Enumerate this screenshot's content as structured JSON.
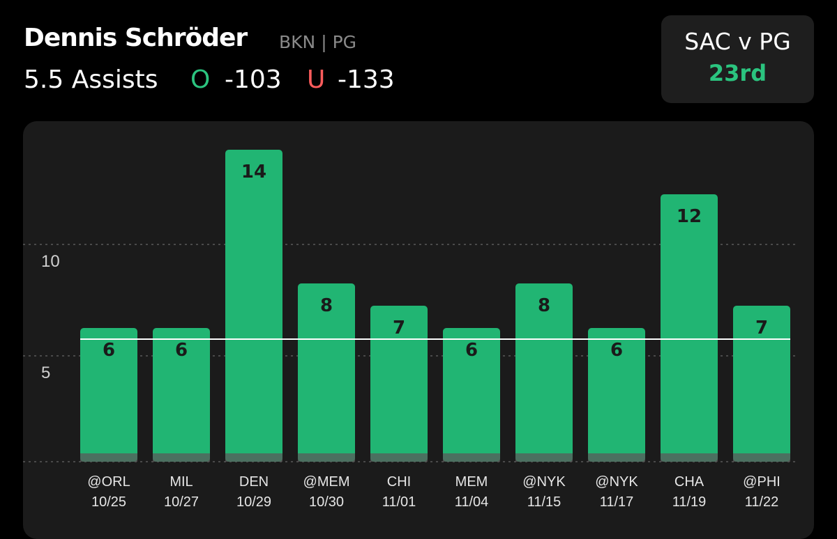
{
  "header": {
    "player_name": "Dennis Schröder",
    "team_position": "BKN | PG",
    "prop_line": "5.5 Assists",
    "over_label": "O",
    "over_odds": "-103",
    "under_label": "U",
    "under_odds": "-133"
  },
  "matchup": {
    "title": "SAC v PG",
    "rank": "23rd"
  },
  "colors": {
    "bar": "#21b573",
    "accent_green": "#2bc47f",
    "accent_red": "#ff5c5c",
    "panel": "#1b1b1b"
  },
  "chart_data": {
    "type": "bar",
    "title": "",
    "xlabel": "",
    "ylabel": "",
    "categories": [
      {
        "opponent": "@ORL",
        "date": "10/25"
      },
      {
        "opponent": "MIL",
        "date": "10/27"
      },
      {
        "opponent": "DEN",
        "date": "10/29"
      },
      {
        "opponent": "@MEM",
        "date": "10/30"
      },
      {
        "opponent": "CHI",
        "date": "11/01"
      },
      {
        "opponent": "MEM",
        "date": "11/04"
      },
      {
        "opponent": "@NYK",
        "date": "11/15"
      },
      {
        "opponent": "@NYK",
        "date": "11/17"
      },
      {
        "opponent": "CHA",
        "date": "11/19"
      },
      {
        "opponent": "@PHI",
        "date": "11/22"
      }
    ],
    "values": [
      6,
      6,
      14,
      8,
      7,
      6,
      8,
      6,
      12,
      7
    ],
    "reference_line": 5.5,
    "yticks": [
      5,
      10
    ],
    "ylim": [
      0,
      14
    ],
    "grid": true
  }
}
